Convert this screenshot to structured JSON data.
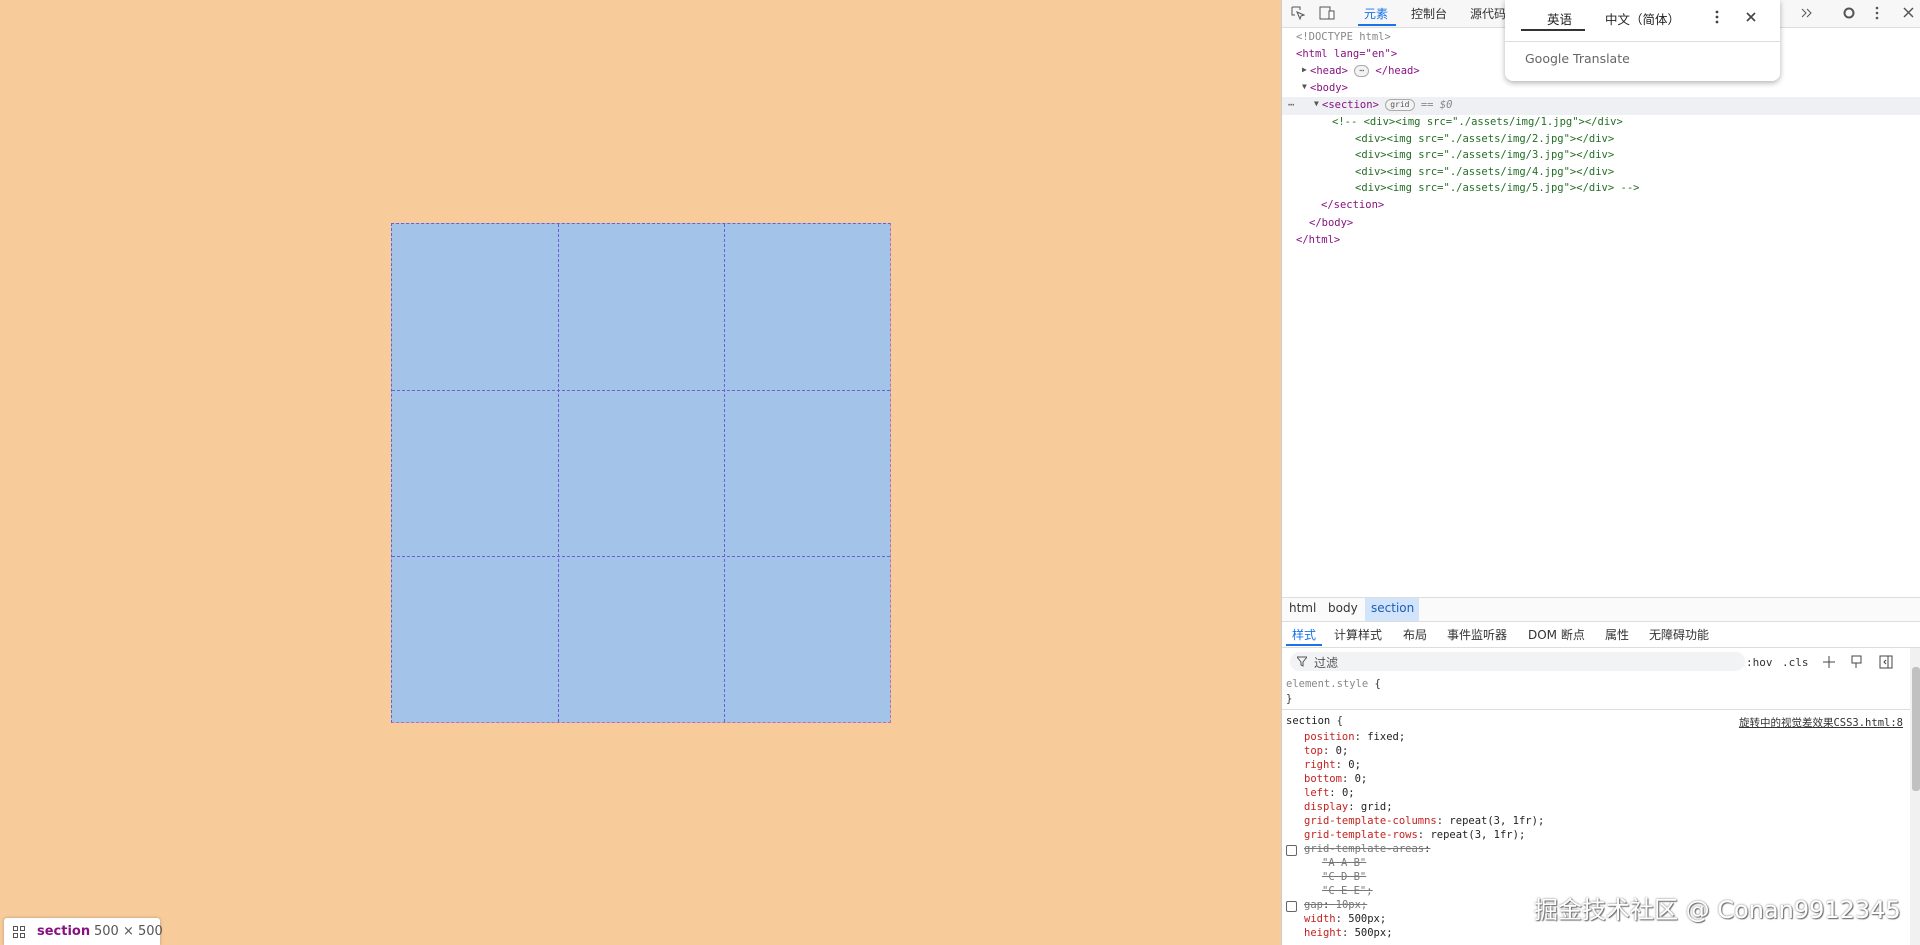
{
  "viewport": {
    "tooltip": {
      "tag": "section",
      "size": "500 × 500"
    }
  },
  "devtools": {
    "tabs": [
      "元素",
      "控制台",
      "源代码"
    ],
    "translate": {
      "tabs": [
        "英语",
        "中文（简体）"
      ],
      "brand": "Google Translate"
    },
    "dom": {
      "doctype": "<!DOCTYPE html>",
      "html_open": "<html lang=\"en\">",
      "head_open": "<head>",
      "head_badge": "⋯",
      "head_close": "</head>",
      "body_open": "<body>",
      "more": "⋯",
      "section_open": "<section>",
      "section_badge": "grid",
      "section_ref": "== $0",
      "comment": [
        "<!-- <div><img src=\"./assets/img/1.jpg\"></div>",
        "<div><img src=\"./assets/img/2.jpg\"></div>",
        "<div><img src=\"./assets/img/3.jpg\"></div>",
        "<div><img src=\"./assets/img/4.jpg\"></div>",
        "<div><img src=\"./assets/img/5.jpg\"></div> -->"
      ],
      "section_close": "</section>",
      "body_close": "</body>",
      "html_close": "</html>"
    },
    "breadcrumb": [
      "html",
      "body",
      "section"
    ],
    "style_tabs": [
      "样式",
      "计算样式",
      "布局",
      "事件监听器",
      "DOM 断点",
      "属性",
      "无障碍功能"
    ],
    "filter": {
      "placeholder": "过滤",
      "hov": ":hov",
      "cls": ".cls"
    },
    "element_style": "element.style",
    "rule": {
      "selector": "section",
      "source": "旋转中的视觉差效果CSS3.html:8",
      "declarations": [
        {
          "name": "position",
          "value": "fixed"
        },
        {
          "name": "top",
          "value": "0"
        },
        {
          "name": "right",
          "value": "0"
        },
        {
          "name": "bottom",
          "value": "0"
        },
        {
          "name": "left",
          "value": "0"
        },
        {
          "name": "display",
          "value": "grid"
        },
        {
          "name": "grid-template-columns",
          "value": "repeat(3, 1fr)"
        },
        {
          "name": "grid-template-rows",
          "value": "repeat(3, 1fr)"
        },
        {
          "name": "grid-template-areas",
          "value": [
            "\"A A B\"",
            "\"C D B\"",
            "\"C E E\""
          ],
          "disabled": true
        },
        {
          "name": "gap",
          "value": "10px",
          "disabled": true
        },
        {
          "name": "width",
          "value": "500px"
        },
        {
          "name": "height",
          "value": "500px"
        }
      ]
    }
  },
  "watermark": "掘金技术社区 @ Conan9912345"
}
